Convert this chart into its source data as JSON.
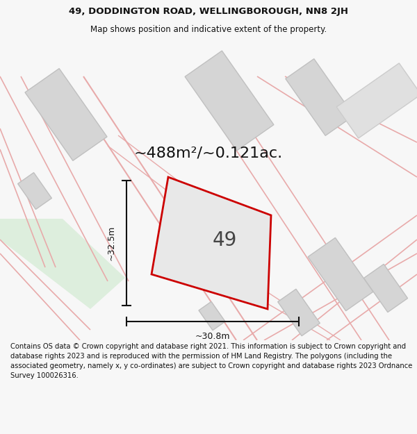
{
  "title_line1": "49, DODDINGTON ROAD, WELLINGBOROUGH, NN8 2JH",
  "title_line2": "Map shows position and indicative extent of the property.",
  "area_text": "~488m²/~0.121ac.",
  "number_label": "49",
  "width_label": "~30.8m",
  "height_label": "~32.5m",
  "footer_text": "Contains OS data © Crown copyright and database right 2021. This information is subject to Crown copyright and database rights 2023 and is reproduced with the permission of HM Land Registry. The polygons (including the associated geometry, namely x, y co-ordinates) are subject to Crown copyright and database rights 2023 Ordnance Survey 100026316.",
  "bg_color": "#f7f7f7",
  "map_bg": "#eeeeee",
  "building_color": "#d5d5d5",
  "building_edge": "#c0c0c0",
  "green_color": "#ddeedd",
  "plot_fill": "#e8e8e8",
  "plot_outline_color": "#cc0000",
  "road_line_color": "#e8aaaa",
  "dim_line_color": "#111111",
  "text_color": "#111111",
  "title_fontsize": 9.5,
  "subtitle_fontsize": 8.5,
  "area_fontsize": 16,
  "number_fontsize": 20,
  "dim_fontsize": 9,
  "footer_fontsize": 7.2
}
